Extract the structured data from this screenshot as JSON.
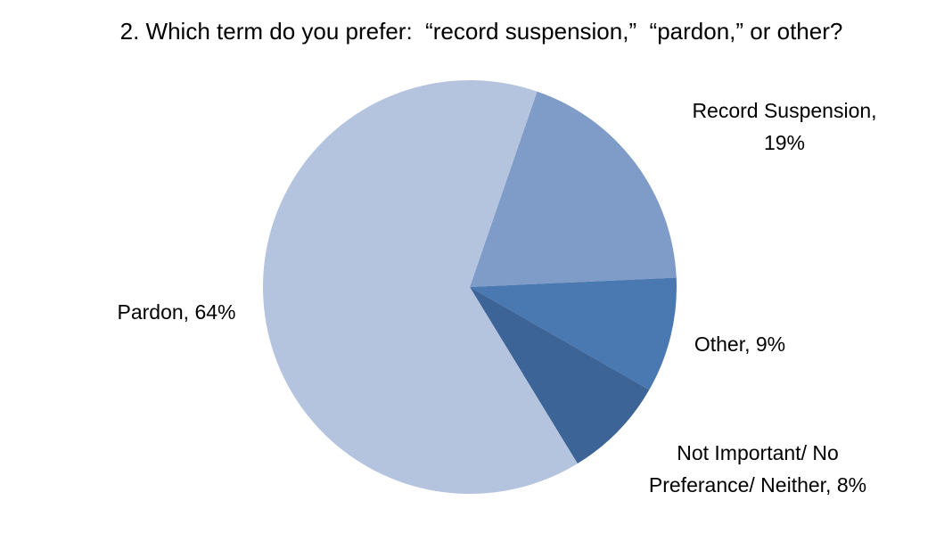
{
  "chart_data": {
    "type": "pie",
    "title": "2. Which term do you prefer:  “record suspension,”  “pardon,” or other?",
    "categories": [
      "Record Suspension,",
      "Other,",
      "Not Important/ No Preferance/ Neither,",
      "Pardon,"
    ],
    "values": [
      19,
      9,
      8,
      64
    ],
    "value_labels": [
      "19%",
      "9%",
      "8%",
      "64%"
    ],
    "colors": [
      "#7f9bc8",
      "#4a78b0",
      "#3d6496",
      "#b4c3de"
    ]
  }
}
